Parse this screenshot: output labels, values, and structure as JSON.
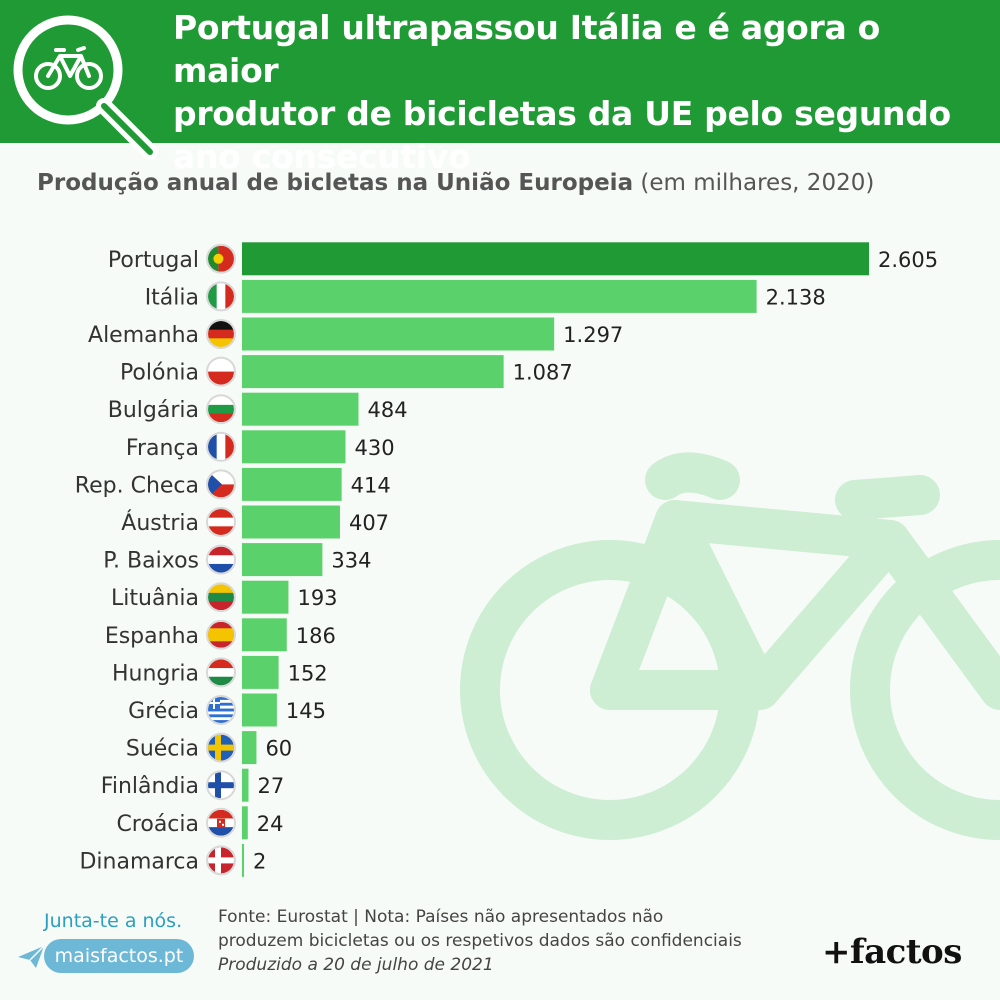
{
  "header": {
    "title_line1": "Portugal ultrapassou Itália e é agora o maior",
    "title_line2": "produtor de bicicletas da UE pelo segundo",
    "title_line3": "ano consecutivo",
    "icon": "bicycle-magnifier-icon",
    "background_color": "#1f9a35"
  },
  "chart_data": {
    "type": "bar",
    "orientation": "horizontal",
    "title": "Produção anual de bicletas na União Europeia",
    "title_note": "(em milhares, 2020)",
    "categories": [
      "Portugal",
      "Itália",
      "Alemanha",
      "Polónia",
      "Bulgária",
      "França",
      "Rep. Checa",
      "Áustria",
      "P. Baixos",
      "Lituânia",
      "Espanha",
      "Hungria",
      "Grécia",
      "Suécia",
      "Finlândia",
      "Croácia",
      "Dinamarca"
    ],
    "values": [
      2605,
      2138,
      1297,
      1087,
      484,
      430,
      414,
      407,
      334,
      193,
      186,
      152,
      145,
      60,
      27,
      24,
      2
    ],
    "value_labels": [
      "2.605",
      "2.138",
      "1.297",
      "1.087",
      "484",
      "430",
      "414",
      "407",
      "334",
      "193",
      "186",
      "152",
      "145",
      "60",
      "27",
      "24",
      "2"
    ],
    "flags": [
      "portugal",
      "italy",
      "germany",
      "poland",
      "bulgaria",
      "france",
      "czech-republic",
      "austria",
      "netherlands",
      "lithuania",
      "spain",
      "hungary",
      "greece",
      "sweden",
      "finland",
      "croatia",
      "denmark"
    ],
    "highlight_index": 0,
    "colors": {
      "highlight": "#1f9a35",
      "bar": "#5bd16b"
    },
    "xlim": [
      0,
      2605
    ],
    "grid": false,
    "legend": "none"
  },
  "footer": {
    "join_text": "Junta-te a nós.",
    "site": "maisfactos.pt",
    "source_line1": "Fonte: Eurostat | Nota: Países não apresentados não",
    "source_line2": "produzem bicicletas ou os respetivos dados são confidenciais",
    "produced": "Produzido a 20 de julho de 2021",
    "brand": "+factos"
  }
}
